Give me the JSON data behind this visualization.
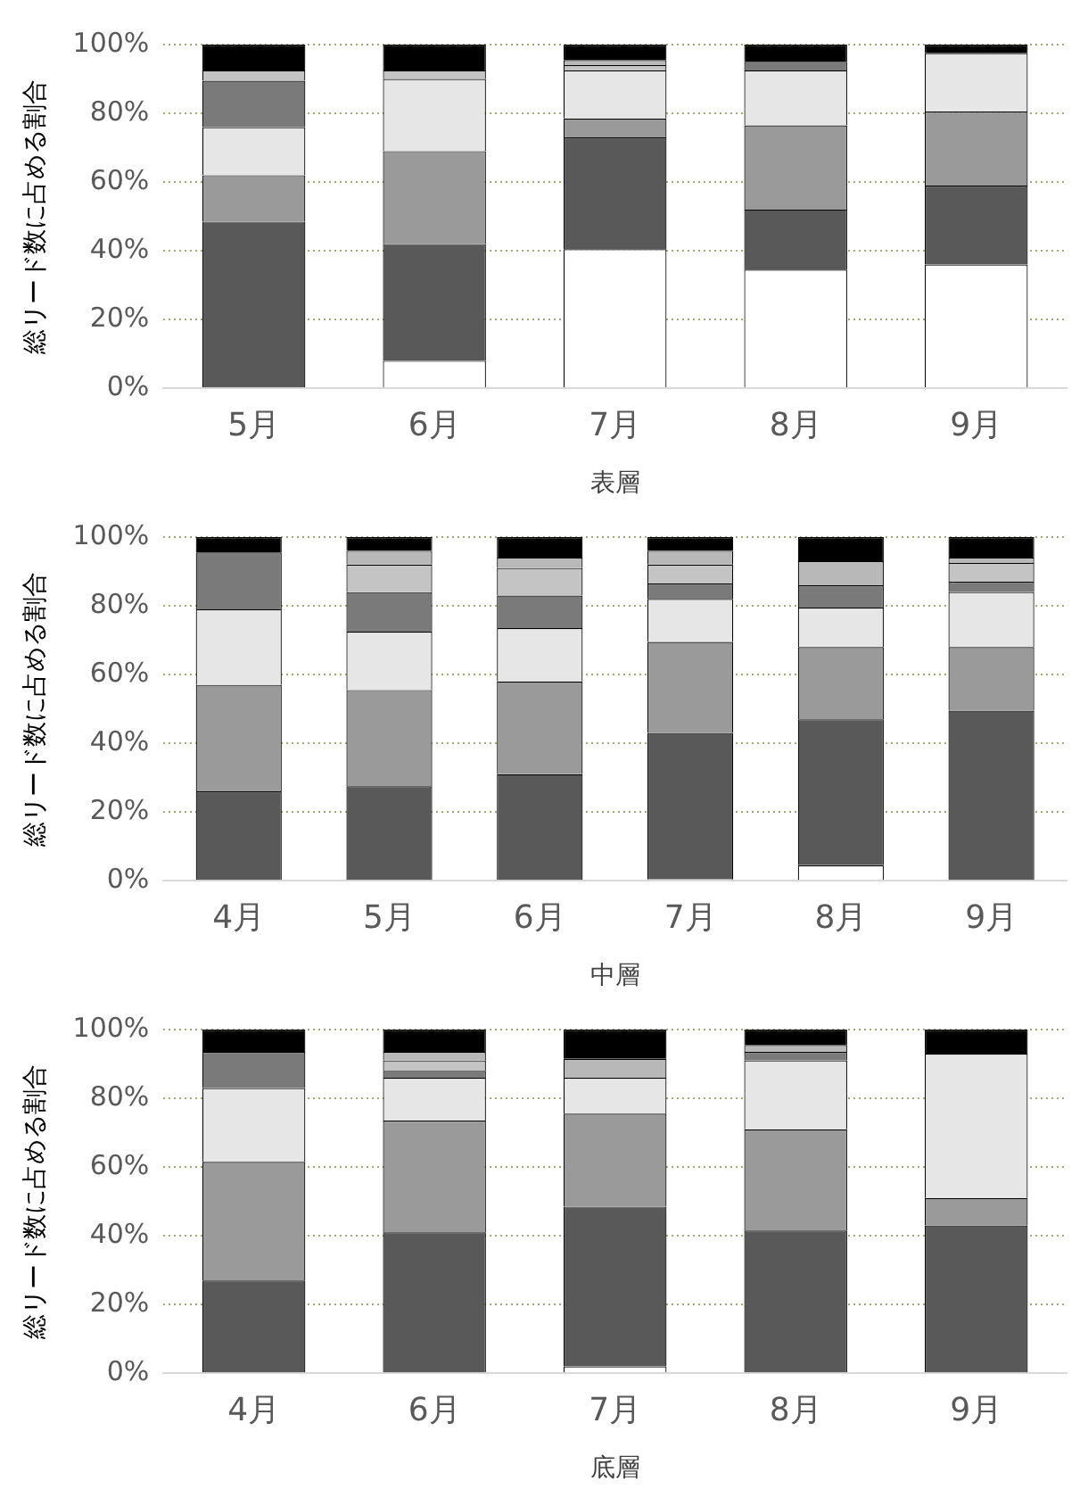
{
  "chart_data": [
    {
      "type": "bar",
      "stacked": true,
      "categories": [
        "5月",
        "6月",
        "7月",
        "8月",
        "9月"
      ],
      "xlabel": "表層",
      "ylabel": "総リード数に占める割合",
      "ylim": [
        0,
        100
      ],
      "yticks": [
        {
          "value": 0,
          "label": "0%"
        },
        {
          "value": 20,
          "label": "20%"
        },
        {
          "value": 40,
          "label": "40%"
        },
        {
          "value": 60,
          "label": "60%"
        },
        {
          "value": 80,
          "label": "80%"
        },
        {
          "value": 100,
          "label": "100%"
        }
      ],
      "grid": "y",
      "series": [
        {
          "color": "#ffffff",
          "values": [
            0,
            8,
            40.5,
            34.5,
            36
          ]
        },
        {
          "color": "#595959",
          "values": [
            48.5,
            34,
            32.5,
            17.5,
            23
          ]
        },
        {
          "color": "#9a9a9a",
          "values": [
            13.5,
            27,
            5.5,
            24.5,
            21.5
          ]
        },
        {
          "color": "#e6e6e6",
          "values": [
            14,
            21,
            14,
            16,
            17
          ]
        },
        {
          "color": "#7a7a7a",
          "values": [
            13.5,
            0,
            0,
            2.5,
            0
          ]
        },
        {
          "color": "#c4c4c4",
          "values": [
            3,
            2.5,
            1.5,
            0,
            0
          ]
        },
        {
          "color": "#b8b8b8",
          "values": [
            0,
            0,
            1.5,
            0,
            0
          ]
        },
        {
          "color": "#000000",
          "values": [
            7.5,
            7.5,
            4.5,
            5,
            2.5
          ]
        }
      ]
    },
    {
      "type": "bar",
      "stacked": true,
      "categories": [
        "4月",
        "5月",
        "6月",
        "7月",
        "8月",
        "9月"
      ],
      "xlabel": "中層",
      "ylabel": "総リード数に占める割合",
      "ylim": [
        0,
        100
      ],
      "yticks": [
        {
          "value": 0,
          "label": "0%"
        },
        {
          "value": 20,
          "label": "20%"
        },
        {
          "value": 40,
          "label": "40%"
        },
        {
          "value": 60,
          "label": "60%"
        },
        {
          "value": 80,
          "label": "80%"
        },
        {
          "value": 100,
          "label": "100%"
        }
      ],
      "grid": "y",
      "series": [
        {
          "color": "#ffffff",
          "values": [
            0,
            0,
            0,
            0.5,
            4.5,
            0
          ]
        },
        {
          "color": "#595959",
          "values": [
            26,
            27.5,
            31,
            42.5,
            42.5,
            49.5
          ]
        },
        {
          "color": "#9a9a9a",
          "values": [
            31,
            28,
            27,
            26.5,
            21,
            18.5
          ]
        },
        {
          "color": "#e6e6e6",
          "values": [
            22,
            17,
            15.5,
            12.5,
            11.5,
            16
          ]
        },
        {
          "color": "#7a7a7a",
          "values": [
            16.5,
            11.5,
            9.5,
            4.5,
            6.5,
            3
          ]
        },
        {
          "color": "#c4c4c4",
          "values": [
            0,
            8,
            8,
            5.5,
            0,
            5.5
          ]
        },
        {
          "color": "#b8b8b8",
          "values": [
            0,
            4,
            3,
            4,
            7,
            1.5
          ]
        },
        {
          "color": "#000000",
          "values": [
            4.5,
            4,
            6,
            4,
            7,
            6
          ]
        }
      ]
    },
    {
      "type": "bar",
      "stacked": true,
      "categories": [
        "4月",
        "6月",
        "7月",
        "8月",
        "9月"
      ],
      "xlabel": "底層",
      "ylabel": "総リード数に占める割合",
      "ylim": [
        0,
        100
      ],
      "yticks": [
        {
          "value": 0,
          "label": "0%"
        },
        {
          "value": 20,
          "label": "20%"
        },
        {
          "value": 40,
          "label": "40%"
        },
        {
          "value": 60,
          "label": "60%"
        },
        {
          "value": 80,
          "label": "80%"
        },
        {
          "value": 100,
          "label": "100%"
        }
      ],
      "grid": "y",
      "series": [
        {
          "color": "#ffffff",
          "values": [
            0,
            0,
            2,
            0,
            0
          ]
        },
        {
          "color": "#595959",
          "values": [
            27,
            41,
            46.5,
            41.5,
            43
          ]
        },
        {
          "color": "#9a9a9a",
          "values": [
            34.5,
            32.5,
            27,
            29.5,
            8
          ]
        },
        {
          "color": "#e6e6e6",
          "values": [
            21.5,
            12.5,
            10.5,
            20,
            42
          ]
        },
        {
          "color": "#7a7a7a",
          "values": [
            10.5,
            2,
            0,
            2.5,
            0
          ]
        },
        {
          "color": "#c4c4c4",
          "values": [
            0,
            3,
            0,
            0,
            0
          ]
        },
        {
          "color": "#b8b8b8",
          "values": [
            0,
            2.5,
            5.5,
            2,
            0
          ]
        },
        {
          "color": "#000000",
          "values": [
            6.5,
            6.5,
            8.5,
            4.5,
            7
          ]
        }
      ]
    }
  ]
}
